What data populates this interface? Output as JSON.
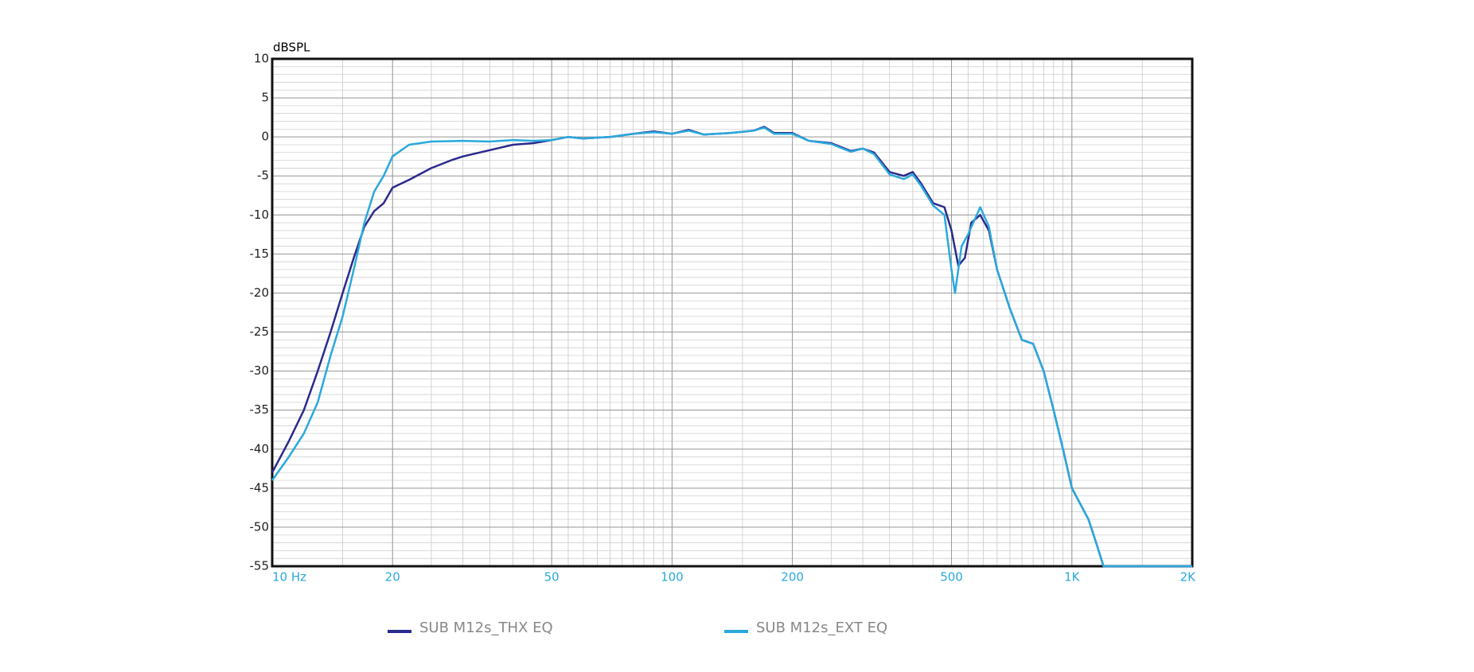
{
  "chart_data": {
    "type": "line",
    "y_label": "dBSPL",
    "x_log": true,
    "grid": true,
    "minor_grid": true,
    "legend": "bottom",
    "xlim": [
      10,
      2000
    ],
    "xticks": [
      {
        "value": 10,
        "label": "10  Hz"
      },
      20,
      50,
      100,
      200,
      500,
      {
        "value": 1000,
        "label": "1K"
      },
      {
        "value": 2000,
        "label": "2K"
      }
    ],
    "ylim": [
      -55,
      10
    ],
    "yticks": [
      10,
      5,
      0,
      -5,
      -10,
      -15,
      -20,
      -25,
      -30,
      -35,
      -40,
      -45,
      -50,
      -55
    ],
    "series": [
      {
        "name": "SUB M12s_THX EQ",
        "color": "#2b2a8c",
        "x": [
          10,
          11,
          12,
          13,
          14,
          15,
          16,
          17,
          18,
          19,
          20,
          22,
          25,
          28,
          30,
          35,
          40,
          45,
          50,
          55,
          60,
          70,
          80,
          90,
          100,
          110,
          120,
          140,
          160,
          170,
          180,
          200,
          220,
          250,
          280,
          300,
          320,
          350,
          380,
          400,
          420,
          450,
          480,
          500,
          520,
          540,
          560,
          590,
          620,
          650,
          700,
          750,
          800,
          850,
          900,
          950,
          1000,
          1100,
          1150,
          1200,
          2000
        ],
        "values": [
          -43,
          -39,
          -35,
          -30,
          -25,
          -20,
          -15.5,
          -11.5,
          -9.5,
          -8.5,
          -6.5,
          -5.5,
          -4,
          -3,
          -2.5,
          -1.7,
          -1,
          -0.8,
          -0.4,
          0,
          -0.2,
          0,
          0.4,
          0.7,
          0.4,
          0.9,
          0.3,
          0.5,
          0.8,
          1.3,
          0.5,
          0.5,
          -0.5,
          -0.8,
          -1.8,
          -1.5,
          -2,
          -4.5,
          -5,
          -4.5,
          -6,
          -8.5,
          -9,
          -12,
          -16.5,
          -15.5,
          -11,
          -10,
          -12,
          -17,
          -22,
          -26,
          -26.5,
          -30,
          -35,
          -40,
          -45,
          -49,
          -52,
          -55,
          -55
        ]
      },
      {
        "name": "SUB M12s_EXT EQ",
        "color": "#2aa9dc",
        "x": [
          10,
          11,
          12,
          13,
          14,
          15,
          16,
          17,
          18,
          19,
          20,
          22,
          25,
          30,
          35,
          40,
          45,
          50,
          55,
          60,
          70,
          80,
          90,
          100,
          110,
          120,
          140,
          160,
          170,
          180,
          200,
          220,
          250,
          280,
          300,
          320,
          350,
          380,
          400,
          420,
          450,
          480,
          500,
          510,
          530,
          550,
          590,
          620,
          650,
          700,
          750,
          800,
          850,
          900,
          950,
          1000,
          1100,
          1150,
          1200,
          2000
        ],
        "values": [
          -44,
          -41,
          -38,
          -34,
          -28,
          -23,
          -17,
          -11,
          -7,
          -5,
          -2.5,
          -1,
          -0.6,
          -0.5,
          -0.6,
          -0.4,
          -0.5,
          -0.4,
          0,
          -0.2,
          0,
          0.4,
          0.6,
          0.4,
          0.8,
          0.3,
          0.5,
          0.8,
          1.2,
          0.4,
          0.4,
          -0.5,
          -0.9,
          -1.9,
          -1.5,
          -2.2,
          -4.8,
          -5.4,
          -4.8,
          -6.3,
          -8.8,
          -10,
          -17,
          -20,
          -14,
          -12.5,
          -9,
          -11.5,
          -17,
          -22,
          -26,
          -26.5,
          -30,
          -35,
          -40,
          -45,
          -49,
          -52,
          -55,
          -55
        ]
      }
    ]
  }
}
